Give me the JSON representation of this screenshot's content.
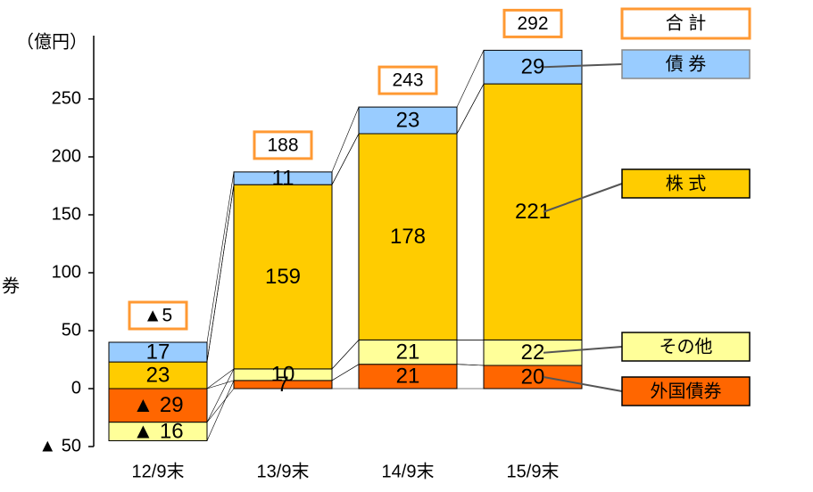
{
  "chart_data": {
    "type": "stacked-bar",
    "y_axis_label": "（億円）",
    "side_note": "券",
    "categories": [
      "12/9末",
      "13/9末",
      "14/9末",
      "15/9末"
    ],
    "series": [
      {
        "name": "外国債券",
        "color": "#ff6600",
        "values": [
          -29,
          7,
          21,
          20
        ],
        "value_labels": [
          "▲ 29",
          "7",
          "21",
          "20"
        ]
      },
      {
        "name": "その他",
        "color": "#ffff99",
        "values": [
          -16,
          10,
          21,
          22
        ],
        "value_labels": [
          "▲ 16",
          "10",
          "21",
          "22"
        ]
      },
      {
        "name": "株 式",
        "color": "#ffcc00",
        "values": [
          23,
          159,
          178,
          221
        ]
      },
      {
        "name": "債 券",
        "color": "#99ccff",
        "values": [
          17,
          11,
          23,
          29
        ]
      }
    ],
    "totals": {
      "name": "合 計",
      "values": [
        -5,
        188,
        243,
        292
      ],
      "value_labels": [
        "▲5",
        "188",
        "243",
        "292"
      ]
    },
    "ylim": [
      -50,
      300
    ],
    "yticks": [
      {
        "value": -50,
        "label": "▲ 50"
      },
      0,
      50,
      100,
      150,
      200,
      250
    ]
  }
}
